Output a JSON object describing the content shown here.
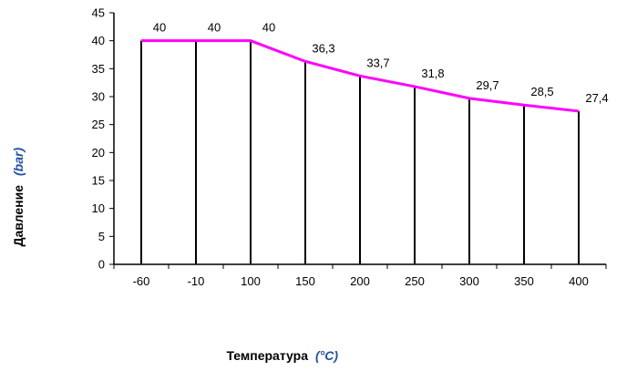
{
  "chart_data": {
    "type": "line",
    "categories": [
      "-60",
      "-10",
      "100",
      "150",
      "200",
      "250",
      "300",
      "350",
      "400"
    ],
    "values": [
      40,
      40,
      40,
      36.3,
      33.7,
      31.8,
      29.7,
      28.5,
      27.4
    ],
    "data_labels": [
      "40",
      "40",
      "40",
      "36,3",
      "33,7",
      "31,8",
      "29,7",
      "28,5",
      "27,4"
    ],
    "y_ticks": [
      "0",
      "5",
      "10",
      "15",
      "20",
      "25",
      "30",
      "35",
      "40",
      "45"
    ],
    "ylim": [
      0,
      45
    ],
    "xlabel": "Температура",
    "xlabel_unit": "(°C)",
    "ylabel": "Давление",
    "ylabel_unit": "(bar)",
    "grid": false,
    "line_color": "#ff00ff",
    "drop_line_color": "#000000"
  }
}
